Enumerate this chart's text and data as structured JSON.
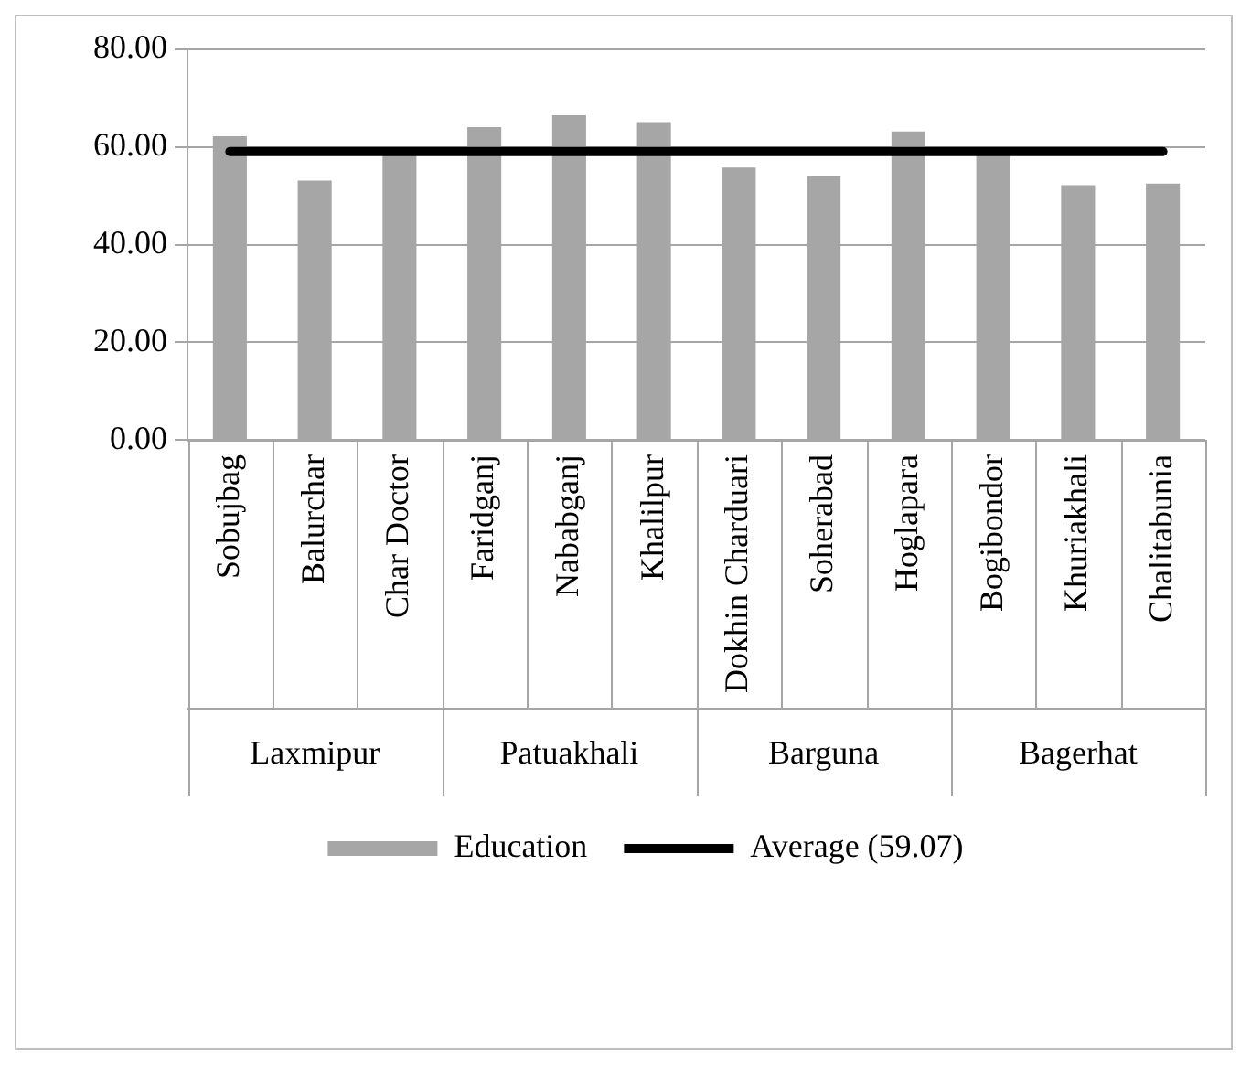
{
  "chart_data": {
    "type": "bar",
    "categories": [
      "Sobujbag",
      "Balurchar",
      "Char Doctor",
      "Faridganj",
      "Nababganj",
      "Khalilpur",
      "Dokhin Charduari",
      "Soherabad",
      "Hoglapara",
      "Bogibondor",
      "Khuriakhali",
      "Chalitabunia"
    ],
    "series": [
      {
        "name": "Education",
        "color": "#a6a6a6",
        "values": [
          62.2,
          53.1,
          58.4,
          64.1,
          66.5,
          65.1,
          55.8,
          54.1,
          63.2,
          58.9,
          52.2,
          52.5
        ]
      },
      {
        "name": "Average (59.07)",
        "type": "line",
        "color": "#000000",
        "values": [
          59.07,
          59.07,
          59.07,
          59.07,
          59.07,
          59.07,
          59.07,
          59.07,
          59.07,
          59.07,
          59.07,
          59.07
        ]
      }
    ],
    "annotations": [
      "Laxmipur",
      "Patuakhali",
      "Barguna",
      "Bagerhat"
    ],
    "ylim": [
      0,
      80
    ],
    "yticks": [
      {
        "value": 0,
        "label": "0.00"
      },
      {
        "value": 20,
        "label": "20.00"
      },
      {
        "value": 40,
        "label": "40.00"
      },
      {
        "value": 60,
        "label": "60.00"
      },
      {
        "value": 80,
        "label": "80.00"
      }
    ],
    "grid": "y",
    "legend": "bottom",
    "marker": "none"
  }
}
